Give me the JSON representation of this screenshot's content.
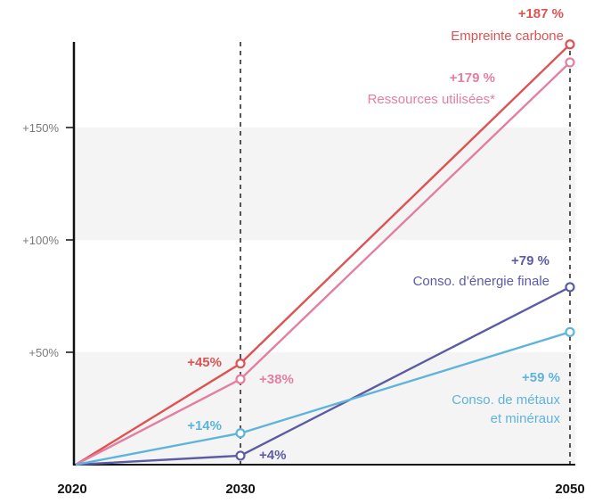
{
  "chart_data": {
    "type": "line",
    "title": "",
    "xlabel": "",
    "ylabel": "",
    "x": [
      2020,
      2030,
      2050
    ],
    "xtick_labels": [
      "2020",
      "2030",
      "2050"
    ],
    "ylim": [
      0,
      200
    ],
    "yticks": [
      50,
      100,
      150
    ],
    "ytick_labels": [
      "+50%",
      "+100%",
      "+150%"
    ],
    "grid": "alternating horizontal bands",
    "legend": "none (series labelled inline)",
    "reference_lines": [
      2030,
      2050
    ],
    "series": [
      {
        "name": "Empreinte carbone",
        "values": [
          0,
          45,
          187
        ],
        "color": "#e05252",
        "point_labels": [
          null,
          "+45%",
          "+187 %"
        ]
      },
      {
        "name": "Ressources utilisées*",
        "values": [
          0,
          38,
          179
        ],
        "color": "#e37fa0",
        "point_labels": [
          null,
          "+38%",
          "+179 %"
        ]
      },
      {
        "name": "Conso. d’énergie finale",
        "values": [
          0,
          4,
          79
        ],
        "color": "#5b5ba6",
        "point_labels": [
          null,
          "+4%",
          "+79 %"
        ]
      },
      {
        "name": "Conso. de métaux et minéraux",
        "name_lines": [
          "Conso. de métaux",
          "et minéraux"
        ],
        "values": [
          0,
          14,
          59
        ],
        "color": "#5fb4dc",
        "point_labels": [
          null,
          "+14%",
          "+59 %"
        ]
      }
    ]
  }
}
